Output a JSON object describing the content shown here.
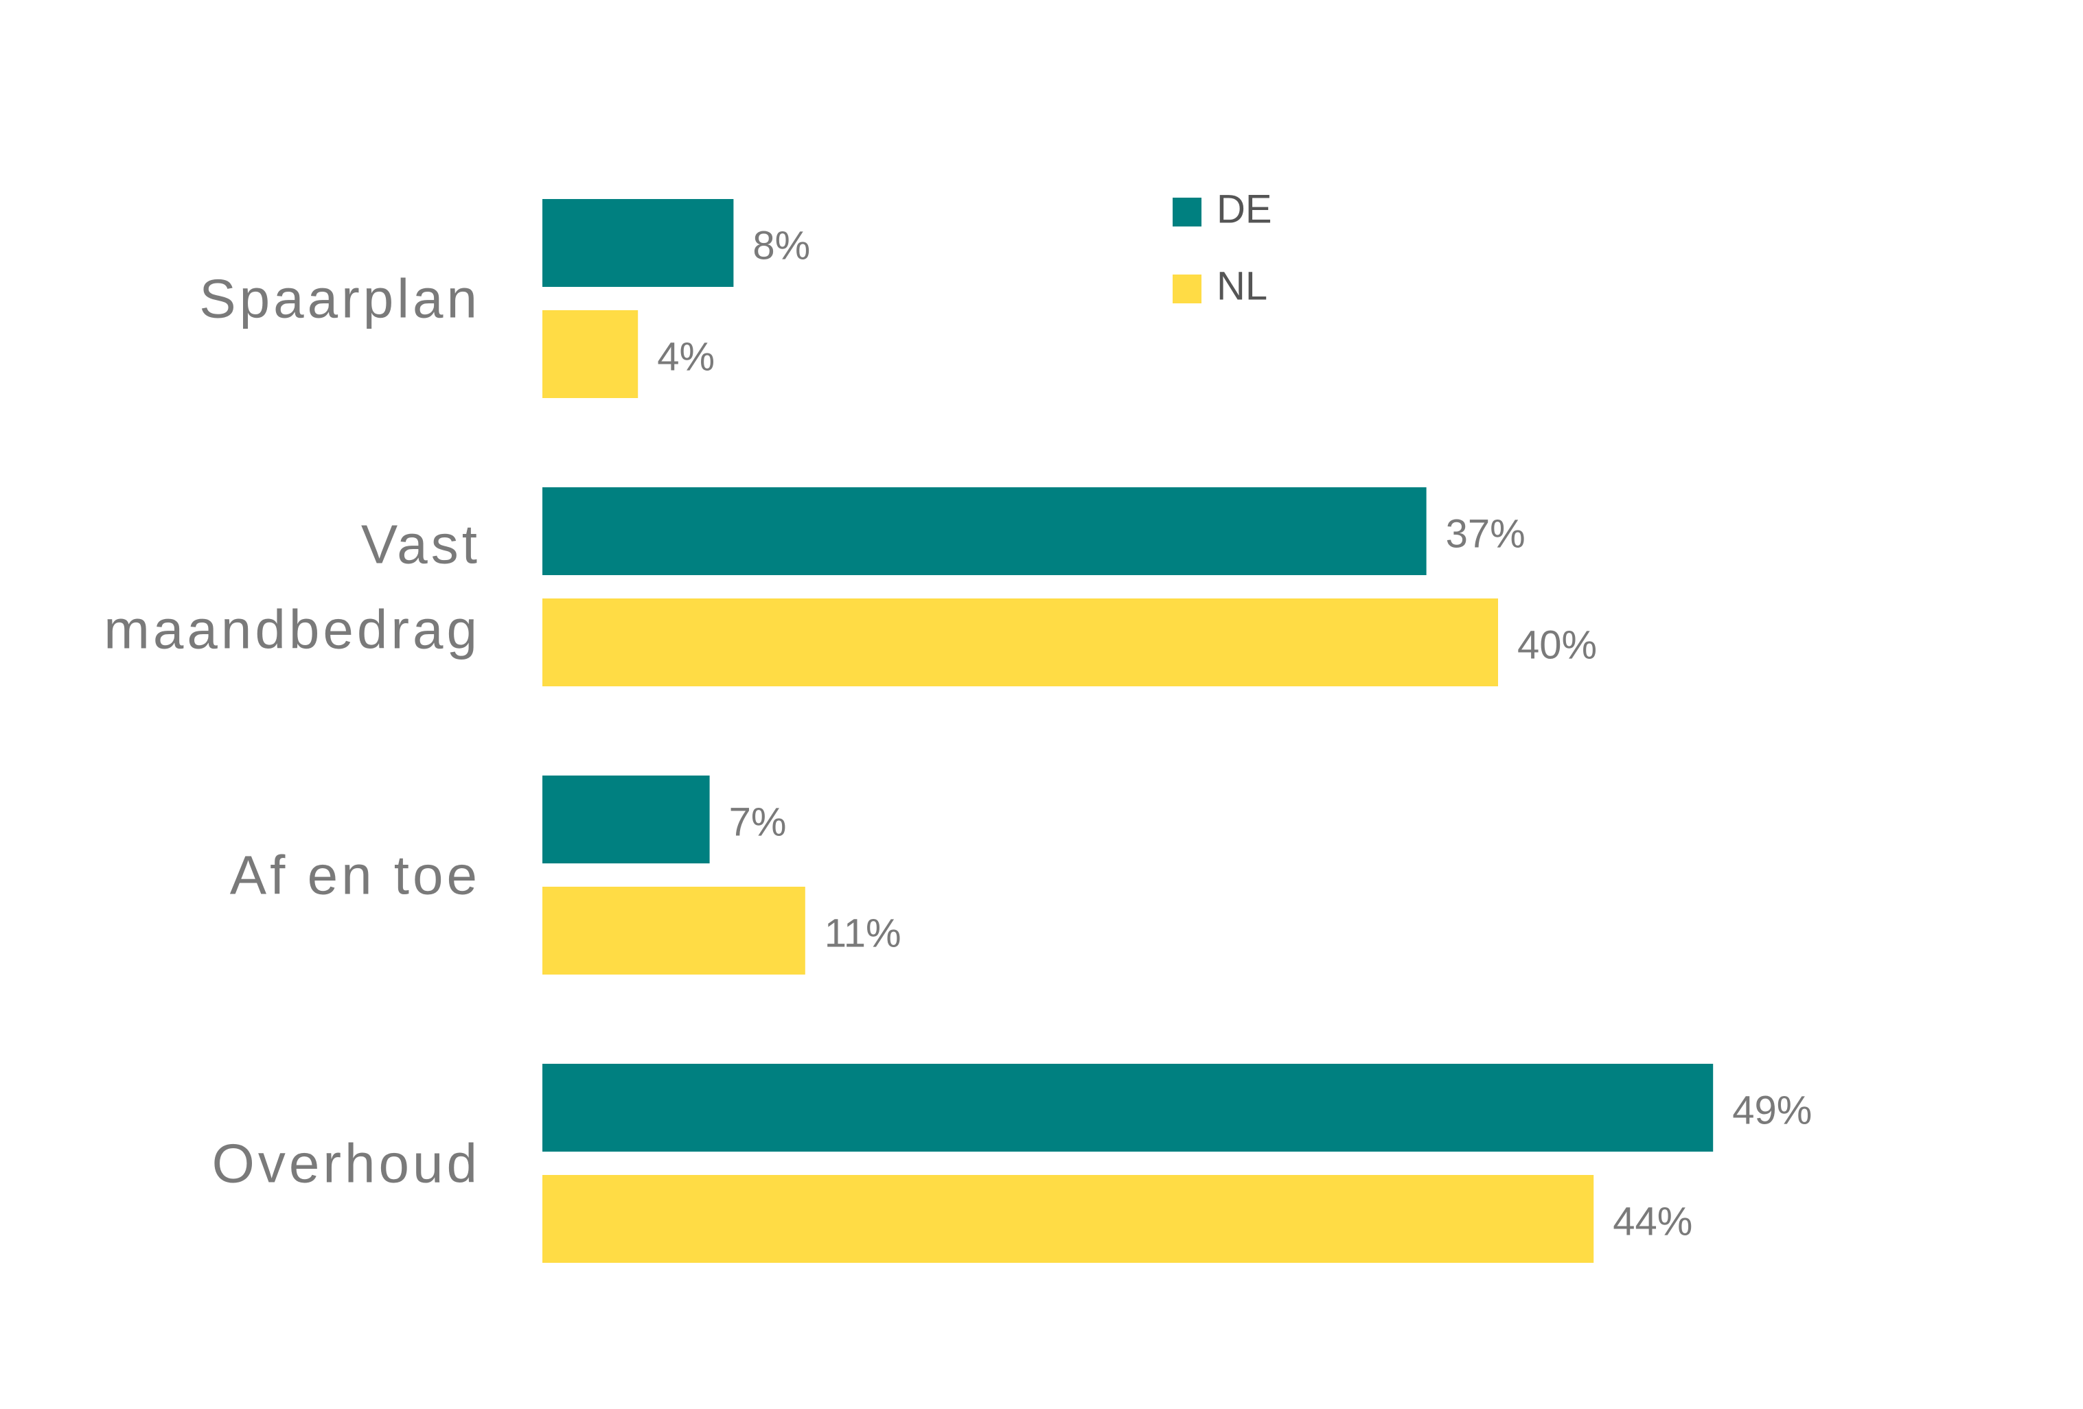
{
  "chart_data": {
    "type": "bar",
    "orientation": "horizontal",
    "categories": [
      [
        "Spaarplan"
      ],
      [
        "Vast",
        "maandbedrag"
      ],
      [
        "Af en toe"
      ],
      [
        "Overhoud"
      ]
    ],
    "series": [
      {
        "name": "DE",
        "color": "#008080",
        "values": [
          8,
          37,
          7,
          49
        ],
        "labels": [
          "8%",
          "37%",
          "7%",
          "49%"
        ]
      },
      {
        "name": "NL",
        "color": "#FFDC45",
        "values": [
          4,
          40,
          11,
          44
        ],
        "labels": [
          "4%",
          "40%",
          "11%",
          "44%"
        ]
      }
    ],
    "unit": "%",
    "legend": "top-right",
    "grid": false,
    "axes_visible": false
  }
}
